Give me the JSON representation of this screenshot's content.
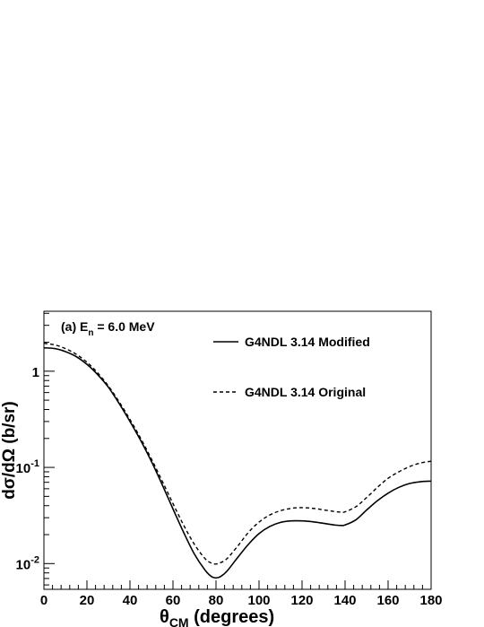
{
  "chart_data": {
    "type": "line",
    "annotation": {
      "prefix": "(a) E",
      "sub": "n",
      "suffix": " = 6.0 MeV"
    },
    "xlabel": {
      "main": "θ",
      "sub": "CM",
      "rest": " (degrees)"
    },
    "ylabel": "dσ/dΩ (b/sr)",
    "x_range": [
      0,
      180
    ],
    "y_range": [
      0.0054,
      4.2
    ],
    "y_scale": "log",
    "x_ticks": [
      "0",
      "20",
      "40",
      "60",
      "80",
      "100",
      "120",
      "140",
      "160",
      "180"
    ],
    "y_ticks": [
      {
        "value": 1,
        "base": "1",
        "exp": ""
      },
      {
        "value": 0.1,
        "base": "10",
        "exp": "-1"
      },
      {
        "value": 0.01,
        "base": "10",
        "exp": "-2"
      }
    ],
    "legend_position": "top-right",
    "series": [
      {
        "name": "G4NDL 3.14 Modified",
        "style": "solid",
        "x": [
          0,
          5,
          10,
          15,
          20,
          25,
          30,
          35,
          40,
          45,
          50,
          55,
          60,
          65,
          70,
          75,
          78,
          80,
          82,
          85,
          90,
          95,
          100,
          105,
          110,
          115,
          120,
          125,
          130,
          135,
          138,
          140,
          145,
          150,
          155,
          160,
          165,
          170,
          175,
          180
        ],
        "y": [
          1.75,
          1.72,
          1.6,
          1.42,
          1.18,
          0.92,
          0.68,
          0.46,
          0.3,
          0.19,
          0.115,
          0.066,
          0.037,
          0.021,
          0.0125,
          0.0085,
          0.0073,
          0.0071,
          0.0073,
          0.0083,
          0.0115,
          0.0158,
          0.0205,
          0.0243,
          0.0268,
          0.0278,
          0.0278,
          0.0272,
          0.0262,
          0.0252,
          0.0249,
          0.0252,
          0.0285,
          0.036,
          0.045,
          0.054,
          0.062,
          0.068,
          0.071,
          0.072
        ]
      },
      {
        "name": "G4NDL 3.14 Original",
        "style": "dashed",
        "x": [
          0,
          5,
          10,
          15,
          20,
          25,
          30,
          35,
          40,
          45,
          50,
          55,
          60,
          65,
          70,
          75,
          78,
          80,
          82,
          85,
          90,
          95,
          100,
          105,
          110,
          115,
          120,
          125,
          130,
          135,
          138,
          140,
          145,
          150,
          155,
          160,
          165,
          170,
          175,
          180
        ],
        "y": [
          1.95,
          1.88,
          1.72,
          1.5,
          1.24,
          0.96,
          0.7,
          0.48,
          0.315,
          0.2,
          0.122,
          0.072,
          0.042,
          0.025,
          0.0158,
          0.0112,
          0.0101,
          0.0099,
          0.0102,
          0.0112,
          0.0151,
          0.021,
          0.027,
          0.032,
          0.0355,
          0.0375,
          0.0382,
          0.0375,
          0.0362,
          0.0348,
          0.0343,
          0.0345,
          0.039,
          0.0485,
          0.062,
          0.077,
          0.09,
          0.102,
          0.111,
          0.116
        ]
      }
    ]
  }
}
